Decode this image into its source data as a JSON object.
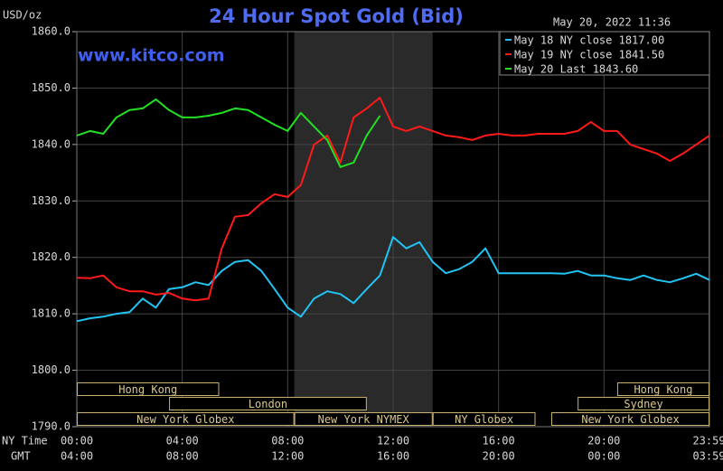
{
  "chart_data": {
    "type": "line",
    "title": "24 Hour Spot Gold (Bid)",
    "timestamp": "May 20, 2022 11:36",
    "watermark": "www.kitco.com",
    "y_unit": "USD/oz",
    "x_row_labels": [
      "NY Time",
      "GMT"
    ],
    "xlim": [
      0,
      24
    ],
    "xticks": [
      {
        "value": 0,
        "label": "00:00"
      },
      {
        "value": 4,
        "label": "04:00"
      },
      {
        "value": 8,
        "label": "08:00"
      },
      {
        "value": 12,
        "label": "12:00"
      },
      {
        "value": 16,
        "label": "16:00"
      },
      {
        "value": 20,
        "label": "20:00"
      },
      {
        "value": 23.983,
        "label": "23:59"
      }
    ],
    "xticks_gmt": [
      {
        "value": 0,
        "label": "04:00"
      },
      {
        "value": 4,
        "label": "08:00"
      },
      {
        "value": 8,
        "label": "12:00"
      },
      {
        "value": 12,
        "label": "16:00"
      },
      {
        "value": 16,
        "label": "20:00"
      },
      {
        "value": 20,
        "label": "00:00"
      },
      {
        "value": 23.983,
        "label": "03:59"
      }
    ],
    "ylim": [
      1790,
      1860
    ],
    "yticks": [
      {
        "value": 1790,
        "label": "1790.0"
      },
      {
        "value": 1800,
        "label": "1800.0"
      },
      {
        "value": 1810,
        "label": "1810.0"
      },
      {
        "value": 1820,
        "label": "1820.0"
      },
      {
        "value": 1830,
        "label": "1830.0"
      },
      {
        "value": 1840,
        "label": "1840.0"
      },
      {
        "value": 1850,
        "label": "1850.0"
      },
      {
        "value": 1860,
        "label": "1860.0"
      }
    ],
    "grid": true,
    "legend": "top-right",
    "x": [
      0,
      0.5,
      1,
      1.5,
      2,
      2.5,
      3,
      3.5,
      4,
      4.5,
      5,
      5.5,
      6,
      6.5,
      7,
      7.5,
      8,
      8.5,
      9,
      9.5,
      10,
      10.5,
      11,
      11.5,
      12,
      12.5,
      13,
      13.5,
      14,
      14.5,
      15,
      15.5,
      16,
      16.5,
      17,
      17.5,
      18,
      18.5,
      19,
      19.5,
      20,
      20.5,
      21,
      21.5,
      22,
      22.5,
      23,
      23.5,
      24
    ],
    "series": [
      {
        "name": "May 18 NY close 1817.00",
        "color": "#22c4f4",
        "values": [
          1808.7,
          1809.2,
          1809.5,
          1810.0,
          1810.3,
          1812.7,
          1811.1,
          1814.4,
          1814.7,
          1815.6,
          1815.1,
          1817.6,
          1819.2,
          1819.5,
          1817.6,
          1814.4,
          1811.1,
          1809.5,
          1812.7,
          1814.0,
          1813.5,
          1811.9,
          1814.4,
          1816.8,
          1823.6,
          1821.6,
          1822.7,
          1819.2,
          1817.2,
          1817.9,
          1819.2,
          1821.6,
          1817.2,
          1817.2,
          1817.2,
          1817.2,
          1817.2,
          1817.1,
          1817.6,
          1816.8,
          1816.8,
          1816.3,
          1816.0,
          1816.8,
          1816.0,
          1815.6,
          1816.3,
          1817.1,
          1816.0
        ]
      },
      {
        "name": "May 19 NY close 1841.50",
        "color": "#ff1a1a",
        "values": [
          1816.4,
          1816.3,
          1816.8,
          1814.7,
          1814.0,
          1814.0,
          1813.4,
          1813.7,
          1812.7,
          1812.4,
          1812.7,
          1821.6,
          1827.2,
          1827.5,
          1829.6,
          1831.2,
          1830.7,
          1832.8,
          1840.0,
          1841.6,
          1836.8,
          1844.8,
          1846.4,
          1848.3,
          1843.2,
          1842.4,
          1843.2,
          1842.4,
          1841.6,
          1841.3,
          1840.8,
          1841.6,
          1841.9,
          1841.6,
          1841.6,
          1841.9,
          1841.9,
          1841.9,
          1842.4,
          1844.0,
          1842.4,
          1842.4,
          1840.0,
          1839.2,
          1838.4,
          1837.1,
          1838.4,
          1840.0,
          1841.6
        ]
      },
      {
        "name": "May 20 Last 1843.60",
        "color": "#22e022",
        "values": [
          1841.6,
          1842.4,
          1841.9,
          1844.8,
          1846.1,
          1846.4,
          1848.0,
          1846.1,
          1844.8,
          1844.8,
          1845.1,
          1845.6,
          1846.4,
          1846.1,
          1844.8,
          1843.5,
          1842.4,
          1845.6,
          1843.2,
          1840.8,
          1836.0,
          1836.8,
          1841.6,
          1845.1,
          null,
          null,
          null,
          null,
          null,
          null,
          null,
          null,
          null,
          null,
          null,
          null,
          null,
          null,
          null,
          null,
          null,
          null,
          null,
          null,
          null,
          null,
          null,
          null,
          null
        ]
      }
    ],
    "sessions": [
      [
        {
          "label": "Hong Kong",
          "start": 0,
          "end": 5.4
        },
        {
          "label": "Hong Kong",
          "start": 20.5,
          "end": 24
        }
      ],
      [
        {
          "label": "London",
          "start": 3.5,
          "end": 11
        },
        {
          "label": "Sydney",
          "start": 19,
          "end": 24
        }
      ],
      [
        {
          "label": "New York Globex",
          "start": 0,
          "end": 8.25
        },
        {
          "label": "New York NYMEX",
          "start": 8.25,
          "end": 13.5,
          "shaded": true
        },
        {
          "label": "NY Globex",
          "start": 13.5,
          "end": 17.4
        },
        {
          "label": "New York Globex",
          "start": 18,
          "end": 24
        }
      ]
    ]
  }
}
